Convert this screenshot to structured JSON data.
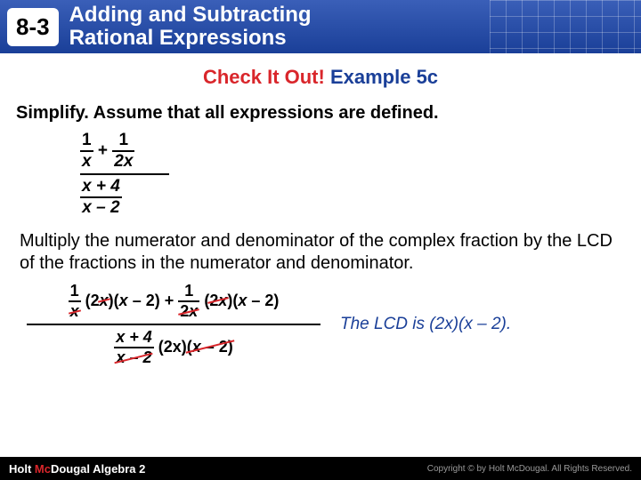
{
  "header": {
    "section": "8-3",
    "title_html": "Adding and Subtracting<br>Rational Expressions"
  },
  "subtitle": {
    "check": "Check It Out!",
    "example": "Example 5c"
  },
  "instruction": "Simplify. Assume that all expressions are defined.",
  "expr1": {
    "n1": "1",
    "d1": "x",
    "plus": "+",
    "n2": "1",
    "d2": "2x",
    "botnum": "x + 4",
    "botden": "x – 2"
  },
  "explain": "Multiply the numerator and denominator of the complex fraction by the LCD of the fractions in the numerator and denominator.",
  "expr2": {
    "f1n": "1",
    "f1d": "x",
    "mult1": "(2x)(x – 2)",
    "plus": "+",
    "f2n": "1",
    "f2d": "2x",
    "mult2": "(2x)(x – 2)",
    "bnum": "x + 4",
    "bden": "x – 2",
    "bmult_a": "(2x)",
    "bmult_b": "(x – 2)"
  },
  "lcd": "The LCD is (2x)(x – 2).",
  "footer": {
    "left": "Holt McDougal Algebra 2",
    "right": "Copyright © by Holt McDougal. All Rights Reserved."
  },
  "colors": {
    "red": "#d9262b",
    "blue": "#1a3f98",
    "headerGrad1": "#3a5fb8",
    "headerGrad2": "#1a3f98"
  }
}
